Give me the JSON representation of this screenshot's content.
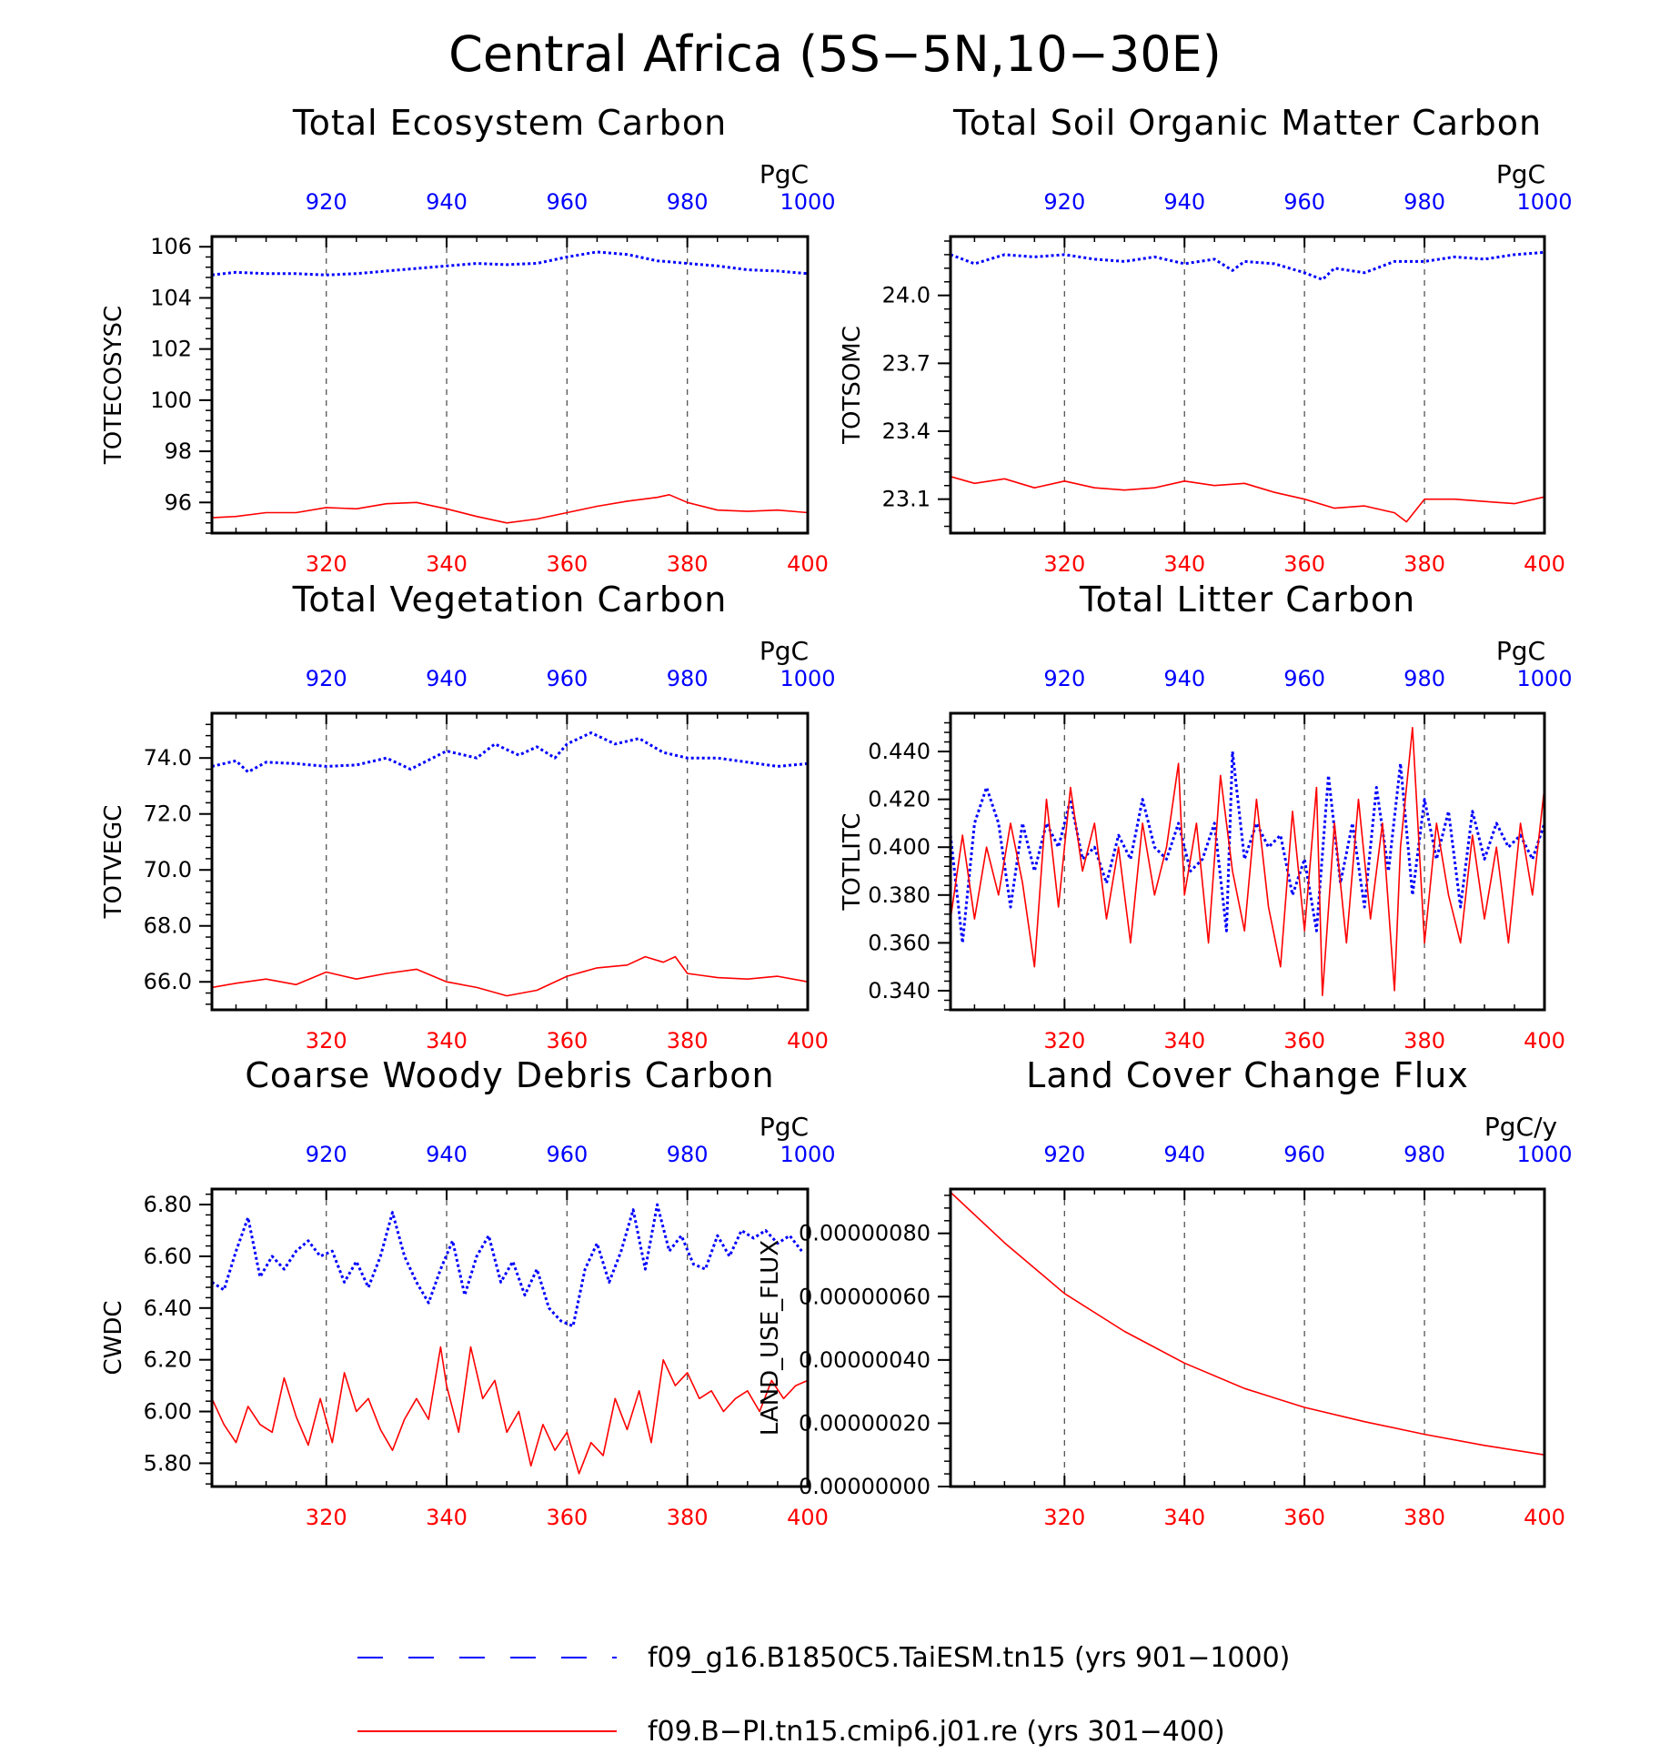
{
  "figure": {
    "title": "Central Africa (5S−5N,10−30E)"
  },
  "colors": {
    "series_a": "#0000ff",
    "series_b": "#ff0000",
    "axis": "#000000",
    "grid": "#555555"
  },
  "legend": {
    "entries": [
      {
        "label": "f09_g16.B1850C5.TaiESM.tn15 (yrs 901−1000)",
        "color": "#0000ff",
        "style": "dashed"
      },
      {
        "label": "f09.B−PI.tn15.cmip6.j01.re (yrs 301−400)",
        "color": "#ff0000",
        "style": "solid"
      }
    ],
    "placement": "bottom-center"
  },
  "chart_data": [
    {
      "type": "line",
      "title": "Total Ecosystem Carbon",
      "ylabel": "TOTECOSYSC",
      "units": "PgC",
      "ylim": [
        94.8,
        106.4
      ],
      "y_ticks": [
        "96",
        "98",
        "100",
        "102",
        "104",
        "106"
      ],
      "x_bottom_ticks": [
        "320",
        "340",
        "360",
        "380",
        "400"
      ],
      "x_bottom_range": [
        301,
        400
      ],
      "x_top_ticks": [
        "920",
        "940",
        "960",
        "980",
        "1000"
      ],
      "x_top_range": [
        901,
        1000
      ],
      "grid_x": [
        320,
        340,
        360,
        380
      ],
      "series": [
        {
          "name": "f09_g16.B1850C5.TaiESM.tn15 (yrs 901−1000)",
          "axis": "top",
          "color": "#0000ff",
          "style": "dotted",
          "x": [
            901,
            905,
            910,
            915,
            920,
            925,
            930,
            935,
            940,
            945,
            950,
            955,
            960,
            965,
            970,
            975,
            980,
            985,
            990,
            995,
            1000
          ],
          "values": [
            104.9,
            105.0,
            104.95,
            104.95,
            104.9,
            104.95,
            105.05,
            105.15,
            105.25,
            105.35,
            105.3,
            105.35,
            105.6,
            105.8,
            105.7,
            105.45,
            105.35,
            105.25,
            105.1,
            105.05,
            104.95
          ]
        },
        {
          "name": "f09.B−PI.tn15.cmip6.j01.re (yrs 301−400)",
          "axis": "bottom",
          "color": "#ff0000",
          "style": "solid",
          "x": [
            301,
            305,
            310,
            315,
            320,
            325,
            330,
            335,
            340,
            345,
            350,
            355,
            360,
            365,
            370,
            375,
            377,
            380,
            385,
            390,
            395,
            400
          ],
          "values": [
            95.4,
            95.45,
            95.6,
            95.6,
            95.8,
            95.75,
            95.95,
            96.0,
            95.75,
            95.45,
            95.2,
            95.35,
            95.6,
            95.85,
            96.05,
            96.2,
            96.3,
            96.0,
            95.7,
            95.65,
            95.7,
            95.6
          ]
        }
      ]
    },
    {
      "type": "line",
      "title": "Total Soil Organic Matter Carbon",
      "ylabel": "TOTSOMC",
      "units": "PgC",
      "ylim": [
        22.95,
        24.26
      ],
      "y_ticks": [
        "23.1",
        "23.4",
        "23.7",
        "24.0"
      ],
      "x_bottom_ticks": [
        "320",
        "340",
        "360",
        "380",
        "400"
      ],
      "x_bottom_range": [
        301,
        400
      ],
      "x_top_ticks": [
        "920",
        "940",
        "960",
        "980",
        "1000"
      ],
      "x_top_range": [
        901,
        1000
      ],
      "grid_x": [
        320,
        340,
        360,
        380
      ],
      "series": [
        {
          "name": "f09_g16.B1850C5.TaiESM.tn15 (yrs 901−1000)",
          "axis": "top",
          "color": "#0000ff",
          "style": "dotted",
          "x": [
            901,
            905,
            910,
            915,
            920,
            925,
            930,
            935,
            940,
            945,
            948,
            950,
            955,
            960,
            963,
            965,
            970,
            975,
            980,
            985,
            990,
            995,
            1000
          ],
          "values": [
            24.18,
            24.14,
            24.18,
            24.17,
            24.18,
            24.16,
            24.15,
            24.17,
            24.14,
            24.16,
            24.11,
            24.15,
            24.14,
            24.1,
            24.07,
            24.12,
            24.1,
            24.15,
            24.15,
            24.17,
            24.16,
            24.18,
            24.19
          ]
        },
        {
          "name": "f09.B−PI.tn15.cmip6.j01.re (yrs 301−400)",
          "axis": "bottom",
          "color": "#ff0000",
          "style": "solid",
          "x": [
            301,
            305,
            310,
            315,
            320,
            325,
            330,
            335,
            340,
            345,
            350,
            355,
            360,
            365,
            370,
            375,
            377,
            380,
            385,
            390,
            395,
            400
          ],
          "values": [
            23.2,
            23.17,
            23.19,
            23.15,
            23.18,
            23.15,
            23.14,
            23.15,
            23.18,
            23.16,
            23.17,
            23.13,
            23.1,
            23.06,
            23.07,
            23.04,
            23.0,
            23.1,
            23.1,
            23.09,
            23.08,
            23.11
          ]
        }
      ]
    },
    {
      "type": "line",
      "title": "Total Vegetation Carbon",
      "ylabel": "TOTVEGC",
      "units": "PgC",
      "ylim": [
        65.0,
        75.6
      ],
      "y_ticks": [
        "66.0",
        "68.0",
        "70.0",
        "72.0",
        "74.0"
      ],
      "x_bottom_ticks": [
        "320",
        "340",
        "360",
        "380",
        "400"
      ],
      "x_bottom_range": [
        301,
        400
      ],
      "x_top_ticks": [
        "920",
        "940",
        "960",
        "980",
        "1000"
      ],
      "x_top_range": [
        901,
        1000
      ],
      "grid_x": [
        320,
        340,
        360,
        380
      ],
      "series": [
        {
          "name": "f09_g16.B1850C5.TaiESM.tn15 (yrs 901−1000)",
          "axis": "top",
          "color": "#0000ff",
          "style": "dotted",
          "x": [
            901,
            905,
            907,
            910,
            915,
            920,
            925,
            930,
            934,
            940,
            945,
            948,
            952,
            955,
            958,
            960,
            964,
            968,
            972,
            976,
            980,
            985,
            990,
            995,
            1000
          ],
          "values": [
            73.7,
            73.9,
            73.5,
            73.85,
            73.8,
            73.7,
            73.75,
            74.0,
            73.6,
            74.25,
            74.0,
            74.5,
            74.1,
            74.4,
            74.0,
            74.5,
            74.9,
            74.5,
            74.7,
            74.2,
            74.0,
            74.0,
            73.85,
            73.7,
            73.8
          ]
        },
        {
          "name": "f09.B−PI.tn15.cmip6.j01.re (yrs 301−400)",
          "axis": "bottom",
          "color": "#ff0000",
          "style": "solid",
          "x": [
            301,
            305,
            310,
            315,
            320,
            325,
            330,
            335,
            340,
            345,
            350,
            355,
            360,
            365,
            370,
            373,
            376,
            378,
            380,
            385,
            390,
            395,
            400
          ],
          "values": [
            65.8,
            65.95,
            66.1,
            65.9,
            66.35,
            66.1,
            66.3,
            66.45,
            66.0,
            65.8,
            65.5,
            65.7,
            66.2,
            66.5,
            66.6,
            66.9,
            66.7,
            66.9,
            66.3,
            66.15,
            66.1,
            66.2,
            66.0
          ]
        }
      ]
    },
    {
      "type": "line",
      "title": "Total Litter Carbon",
      "ylabel": "TOTLITC",
      "units": "PgC",
      "ylim": [
        0.332,
        0.456
      ],
      "y_ticks": [
        "0.340",
        "0.360",
        "0.380",
        "0.400",
        "0.420",
        "0.440"
      ],
      "x_bottom_ticks": [
        "320",
        "340",
        "360",
        "380",
        "400"
      ],
      "x_bottom_range": [
        301,
        400
      ],
      "x_top_ticks": [
        "920",
        "940",
        "960",
        "980",
        "1000"
      ],
      "x_top_range": [
        901,
        1000
      ],
      "grid_x": [
        320,
        340,
        360,
        380
      ],
      "series": [
        {
          "name": "f09_g16.B1850C5.TaiESM.tn15 (yrs 901−1000)",
          "axis": "top",
          "color": "#0000ff",
          "style": "dotted",
          "x": [
            901,
            903,
            905,
            907,
            909,
            911,
            913,
            915,
            917,
            919,
            921,
            923,
            925,
            927,
            929,
            931,
            933,
            935,
            937,
            939,
            941,
            943,
            945,
            947,
            948,
            950,
            952,
            954,
            956,
            958,
            960,
            962,
            964,
            966,
            968,
            970,
            972,
            974,
            976,
            978,
            980,
            982,
            984,
            986,
            988,
            990,
            992,
            994,
            996,
            998,
            1000
          ],
          "values": [
            0.405,
            0.36,
            0.41,
            0.425,
            0.41,
            0.375,
            0.41,
            0.39,
            0.41,
            0.4,
            0.42,
            0.395,
            0.4,
            0.385,
            0.405,
            0.395,
            0.42,
            0.4,
            0.395,
            0.41,
            0.39,
            0.395,
            0.41,
            0.365,
            0.44,
            0.395,
            0.41,
            0.4,
            0.405,
            0.38,
            0.395,
            0.365,
            0.43,
            0.385,
            0.41,
            0.375,
            0.425,
            0.39,
            0.435,
            0.38,
            0.42,
            0.395,
            0.415,
            0.375,
            0.415,
            0.395,
            0.41,
            0.4,
            0.405,
            0.395,
            0.41
          ]
        },
        {
          "name": "f09.B−PI.tn15.cmip6.j01.re (yrs 301−400)",
          "axis": "bottom",
          "color": "#ff0000",
          "style": "solid",
          "x": [
            301,
            303,
            305,
            307,
            309,
            311,
            313,
            315,
            317,
            319,
            321,
            323,
            325,
            327,
            329,
            331,
            333,
            335,
            337,
            339,
            340,
            342,
            344,
            346,
            348,
            350,
            352,
            354,
            356,
            358,
            360,
            362,
            363,
            365,
            367,
            369,
            371,
            373,
            375,
            376,
            378,
            380,
            382,
            384,
            386,
            388,
            390,
            392,
            394,
            396,
            398,
            400
          ],
          "values": [
            0.37,
            0.405,
            0.37,
            0.4,
            0.38,
            0.41,
            0.385,
            0.35,
            0.42,
            0.375,
            0.425,
            0.39,
            0.41,
            0.37,
            0.4,
            0.36,
            0.41,
            0.38,
            0.4,
            0.435,
            0.38,
            0.41,
            0.36,
            0.43,
            0.39,
            0.365,
            0.42,
            0.375,
            0.35,
            0.415,
            0.365,
            0.425,
            0.338,
            0.41,
            0.36,
            0.42,
            0.37,
            0.41,
            0.34,
            0.4,
            0.45,
            0.36,
            0.41,
            0.38,
            0.36,
            0.405,
            0.37,
            0.4,
            0.36,
            0.41,
            0.38,
            0.425
          ]
        }
      ]
    },
    {
      "type": "line",
      "title": "Coarse Woody Debris Carbon",
      "ylabel": "CWDC",
      "units": "PgC",
      "ylim": [
        5.71,
        6.86
      ],
      "y_ticks": [
        "5.80",
        "6.00",
        "6.20",
        "6.40",
        "6.60",
        "6.80"
      ],
      "x_bottom_ticks": [
        "320",
        "340",
        "360",
        "380",
        "400"
      ],
      "x_bottom_range": [
        301,
        400
      ],
      "x_top_ticks": [
        "920",
        "940",
        "960",
        "980",
        "1000"
      ],
      "x_top_range": [
        901,
        1000
      ],
      "grid_x": [
        320,
        340,
        360,
        380
      ],
      "series": [
        {
          "name": "f09_g16.B1850C5.TaiESM.tn15 (yrs 901−1000)",
          "axis": "top",
          "color": "#0000ff",
          "style": "dotted",
          "x": [
            901,
            903,
            905,
            907,
            909,
            911,
            913,
            915,
            917,
            919,
            921,
            923,
            925,
            927,
            929,
            931,
            933,
            935,
            937,
            939,
            941,
            943,
            945,
            947,
            949,
            951,
            953,
            955,
            957,
            959,
            961,
            963,
            965,
            967,
            969,
            971,
            973,
            975,
            977,
            979,
            981,
            983,
            985,
            987,
            989,
            991,
            993,
            995,
            997,
            999
          ],
          "values": [
            6.5,
            6.47,
            6.62,
            6.75,
            6.52,
            6.6,
            6.55,
            6.62,
            6.66,
            6.6,
            6.62,
            6.5,
            6.58,
            6.48,
            6.6,
            6.77,
            6.6,
            6.5,
            6.42,
            6.55,
            6.66,
            6.45,
            6.6,
            6.68,
            6.5,
            6.58,
            6.45,
            6.55,
            6.4,
            6.35,
            6.33,
            6.55,
            6.65,
            6.5,
            6.62,
            6.78,
            6.55,
            6.8,
            6.62,
            6.68,
            6.57,
            6.55,
            6.68,
            6.6,
            6.7,
            6.67,
            6.7,
            6.65,
            6.68,
            6.62
          ]
        },
        {
          "name": "f09.B−PI.tn15.cmip6.j01.re (yrs 301−400)",
          "axis": "bottom",
          "color": "#ff0000",
          "style": "solid",
          "x": [
            301,
            303,
            305,
            307,
            309,
            311,
            313,
            315,
            317,
            319,
            321,
            323,
            325,
            327,
            329,
            331,
            333,
            335,
            337,
            339,
            340,
            342,
            344,
            346,
            348,
            350,
            352,
            354,
            356,
            358,
            360,
            362,
            364,
            366,
            368,
            370,
            372,
            374,
            376,
            378,
            380,
            382,
            384,
            386,
            388,
            390,
            392,
            394,
            396,
            398,
            400
          ],
          "values": [
            6.05,
            5.95,
            5.88,
            6.02,
            5.95,
            5.92,
            6.13,
            5.98,
            5.87,
            6.05,
            5.88,
            6.15,
            6.0,
            6.05,
            5.93,
            5.85,
            5.97,
            6.05,
            5.97,
            6.25,
            6.1,
            5.92,
            6.25,
            6.05,
            6.12,
            5.92,
            6.0,
            5.79,
            5.95,
            5.85,
            5.92,
            5.76,
            5.88,
            5.83,
            6.05,
            5.93,
            6.08,
            5.88,
            6.2,
            6.1,
            6.15,
            6.05,
            6.08,
            6.0,
            6.05,
            6.08,
            6.0,
            6.12,
            6.05,
            6.1,
            6.12
          ]
        }
      ]
    },
    {
      "type": "line",
      "title": "Land Cover Change Flux",
      "ylabel": "LAND_USE_FLUX",
      "units": "PgC/y",
      "ylim": [
        0,
        9.4e-07
      ],
      "y_ticks": [
        "0.00000000",
        "0.00000020",
        "0.00000040",
        "0.00000060",
        "0.00000080"
      ],
      "x_bottom_ticks": [
        "320",
        "340",
        "360",
        "380",
        "400"
      ],
      "x_bottom_range": [
        301,
        400
      ],
      "x_top_ticks": [
        "920",
        "940",
        "960",
        "980",
        "1000"
      ],
      "x_top_range": [
        901,
        1000
      ],
      "grid_x": [
        320,
        340,
        360,
        380
      ],
      "series": [
        {
          "name": "f09.B−PI.tn15.cmip6.j01.re (yrs 301−400)",
          "axis": "bottom",
          "color": "#ff0000",
          "style": "solid",
          "x": [
            301,
            310,
            320,
            330,
            340,
            350,
            360,
            370,
            380,
            390,
            400
          ],
          "values": [
            9.3e-07,
            7.7e-07,
            6.1e-07,
            4.9e-07,
            3.9e-07,
            3.1e-07,
            2.5e-07,
            2.05e-07,
            1.65e-07,
            1.3e-07,
            1e-07
          ]
        }
      ]
    }
  ]
}
